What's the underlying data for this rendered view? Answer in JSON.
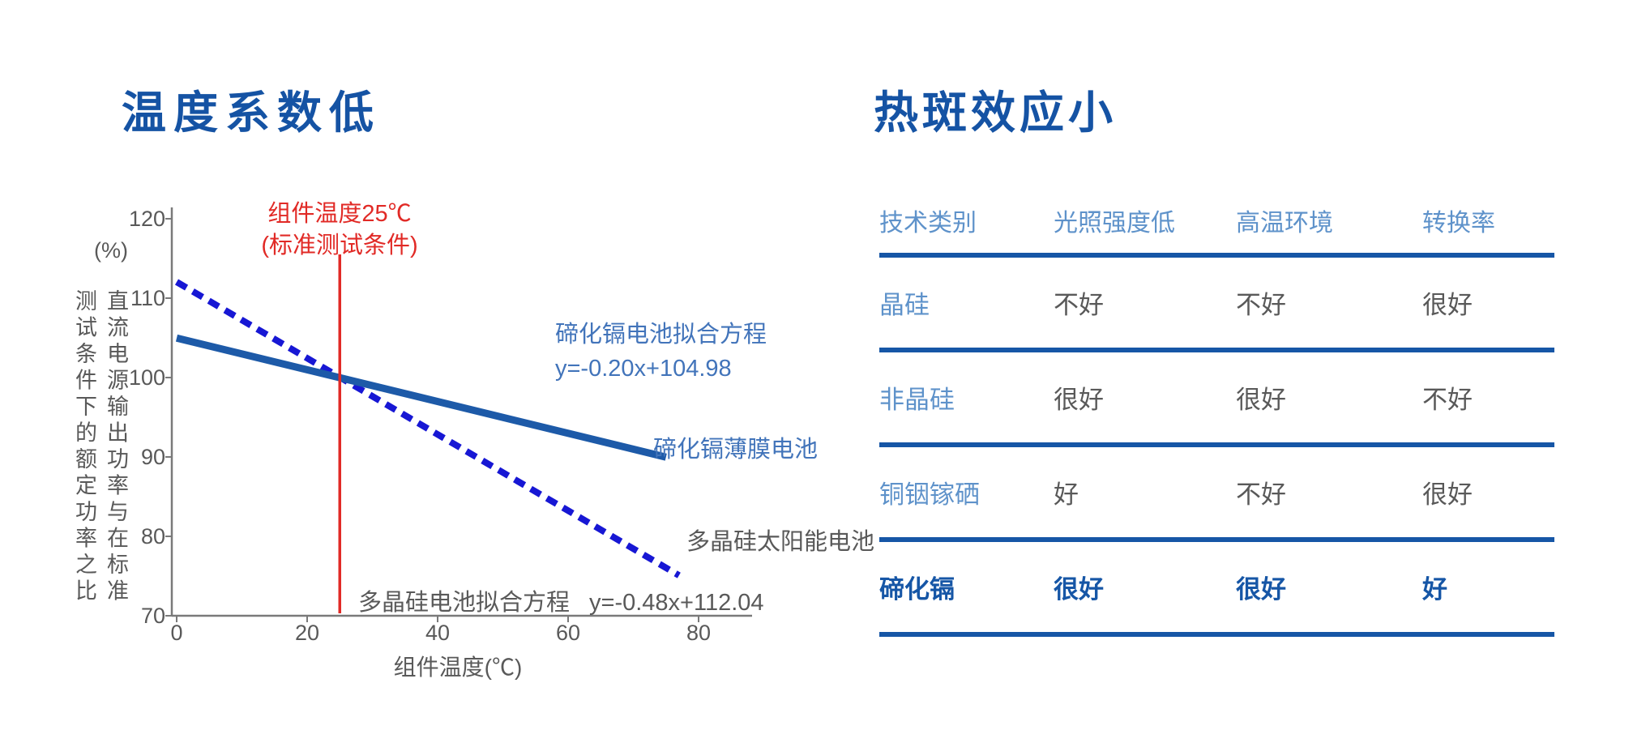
{
  "chart_data": [
    {
      "type": "line",
      "title": "温度系数低",
      "xlabel": "组件温度(℃)",
      "ylabel": "直流电源输出功率与在标准测试条件下的额定功率之比",
      "y_unit": "(%)",
      "xlim": [
        0,
        88
      ],
      "ylim": [
        70,
        120
      ],
      "xticks": [
        "0",
        "20",
        "40",
        "60",
        "80"
      ],
      "yticks": [
        "120",
        "110",
        "100",
        "90",
        "80",
        "70"
      ],
      "grid": false,
      "series": [
        {
          "name": "碲化镉薄膜电池",
          "line_style": "solid",
          "color": "#1d5aa8",
          "fit_label": "碲化镉电池拟合方程",
          "equation": "y=-0.20x+104.98",
          "slope": -0.2,
          "intercept": 104.98,
          "x_range": [
            0,
            75
          ]
        },
        {
          "name": "多晶硅太阳能电池",
          "line_style": "dashed",
          "color": "#1717d4",
          "fit_label": "多晶硅电池拟合方程",
          "equation": "y=-0.48x+112.04",
          "slope": -0.48,
          "intercept": 112.04,
          "x_range": [
            0,
            77
          ]
        }
      ],
      "reference_line": {
        "x": 25,
        "color": "#e12a26",
        "label_line1": "组件温度25℃",
        "label_line2": "(标准测试条件)"
      }
    },
    {
      "type": "table",
      "title": "热斑效应小",
      "columns": [
        "技术类别",
        "光照强度低",
        "高温环境",
        "转换率"
      ],
      "rows": [
        {
          "label": "晶硅",
          "values": [
            "不好",
            "不好",
            "很好"
          ],
          "emphasis": false
        },
        {
          "label": "非晶硅",
          "values": [
            "很好",
            "很好",
            "不好"
          ],
          "emphasis": false
        },
        {
          "label": "铜铟镓硒",
          "values": [
            "好",
            "不好",
            "很好"
          ],
          "emphasis": false
        },
        {
          "label": "碲化镉",
          "values": [
            "很好",
            "很好",
            "好"
          ],
          "emphasis": true
        }
      ],
      "colors": {
        "title_text": "#1553a4",
        "header_text": "#5e92ca",
        "row_label_text": "#5e92ca",
        "cell_text": "#595959",
        "emphasis_text": "#1656a6",
        "rule": "#1656a6"
      }
    }
  ]
}
